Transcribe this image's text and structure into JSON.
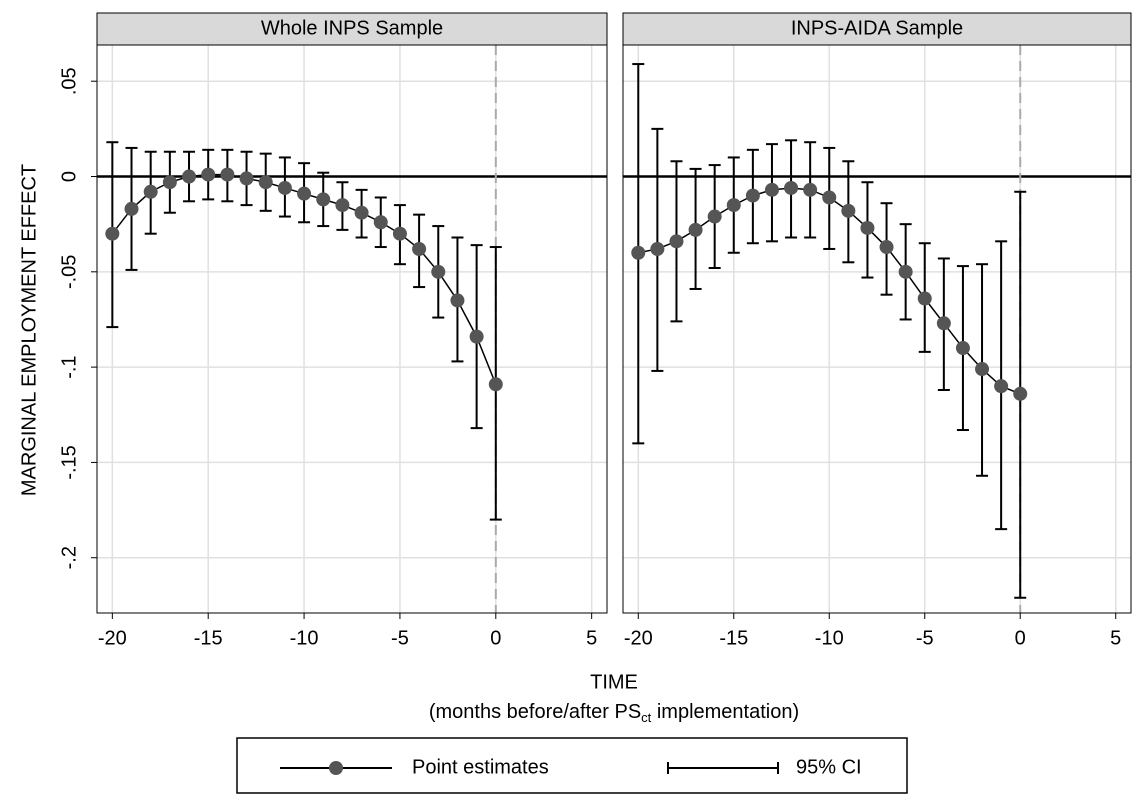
{
  "chart_data": [
    {
      "type": "errorbar",
      "title": "Whole INPS Sample",
      "x": [
        -20,
        -19,
        -18,
        -17,
        -16,
        -15,
        -14,
        -13,
        -12,
        -11,
        -10,
        -9,
        -8,
        -7,
        -6,
        -5,
        -4,
        -3,
        -2,
        -1,
        0
      ],
      "series": [
        {
          "name": "Point estimates",
          "ci_name": "95% CI",
          "color": "#555555",
          "values": [
            -0.03,
            -0.017,
            -0.008,
            -0.003,
            0.0,
            0.001,
            0.001,
            -0.001,
            -0.003,
            -0.006,
            -0.009,
            -0.012,
            -0.015,
            -0.019,
            -0.024,
            -0.03,
            -0.038,
            -0.05,
            -0.065,
            -0.084,
            -0.109
          ],
          "ci_high": [
            0.018,
            0.015,
            0.013,
            0.013,
            0.013,
            0.014,
            0.014,
            0.013,
            0.012,
            0.01,
            0.007,
            0.002,
            -0.003,
            -0.007,
            -0.011,
            -0.015,
            -0.02,
            -0.026,
            -0.032,
            -0.036,
            -0.037
          ],
          "ci_low": [
            -0.079,
            -0.049,
            -0.03,
            -0.019,
            -0.013,
            -0.012,
            -0.013,
            -0.015,
            -0.018,
            -0.021,
            -0.024,
            -0.026,
            -0.028,
            -0.032,
            -0.037,
            -0.046,
            -0.058,
            -0.074,
            -0.097,
            -0.132,
            -0.18
          ]
        }
      ],
      "xlim": [
        -20.8,
        5.8
      ],
      "xticks": [
        -20,
        -15,
        -10,
        -5,
        0,
        5
      ],
      "ylim": [
        -0.229,
        0.069
      ],
      "yticks": [
        {
          "value": 0.05,
          "label": ".05"
        },
        0,
        {
          "value": -0.05,
          "label": "-.05"
        },
        {
          "value": -0.1,
          "label": "-.1"
        },
        {
          "value": -0.15,
          "label": "-.15"
        },
        {
          "value": -0.2,
          "label": "-.2"
        }
      ],
      "grid": true,
      "hline": 0,
      "vline": 0
    },
    {
      "type": "errorbar",
      "title": "INPS-AIDA Sample",
      "x": [
        -20,
        -19,
        -18,
        -17,
        -16,
        -15,
        -14,
        -13,
        -12,
        -11,
        -10,
        -9,
        -8,
        -7,
        -6,
        -5,
        -4,
        -3,
        -2,
        -1,
        0
      ],
      "series": [
        {
          "name": "Point estimates",
          "ci_name": "95% CI",
          "color": "#555555",
          "values": [
            -0.04,
            -0.038,
            -0.034,
            -0.028,
            -0.021,
            -0.015,
            -0.01,
            -0.007,
            -0.006,
            -0.007,
            -0.011,
            -0.018,
            -0.027,
            -0.037,
            -0.05,
            -0.064,
            -0.077,
            -0.09,
            -0.101,
            -0.11,
            -0.114
          ],
          "ci_high": [
            0.059,
            0.025,
            0.008,
            0.004,
            0.006,
            0.01,
            0.014,
            0.017,
            0.019,
            0.018,
            0.015,
            0.008,
            -0.003,
            -0.014,
            -0.025,
            -0.035,
            -0.043,
            -0.047,
            -0.046,
            -0.034,
            -0.008
          ],
          "ci_low": [
            -0.14,
            -0.102,
            -0.076,
            -0.059,
            -0.048,
            -0.04,
            -0.035,
            -0.034,
            -0.032,
            -0.032,
            -0.038,
            -0.045,
            -0.053,
            -0.062,
            -0.075,
            -0.092,
            -0.112,
            -0.133,
            -0.157,
            -0.185,
            -0.221
          ]
        }
      ],
      "xlim": [
        -20.8,
        5.8
      ],
      "xticks": [
        -20,
        -15,
        -10,
        -5,
        0,
        5
      ],
      "ylim": [
        -0.229,
        0.069
      ],
      "yticks": [
        {
          "value": 0.05,
          "label": ".05"
        },
        0,
        {
          "value": -0.05,
          "label": "-.05"
        },
        {
          "value": -0.1,
          "label": "-.1"
        },
        {
          "value": -0.15,
          "label": "-.15"
        },
        {
          "value": -0.2,
          "label": "-.2"
        }
      ],
      "grid": true,
      "hline": 0,
      "vline": 0
    }
  ],
  "y_label": "MARGINAL EMPLOYMENT EFFECT",
  "x_label": "TIME",
  "x_note": {
    "before": "(months before/after PS",
    "sub": "ct",
    "after": " implementation)"
  }
}
